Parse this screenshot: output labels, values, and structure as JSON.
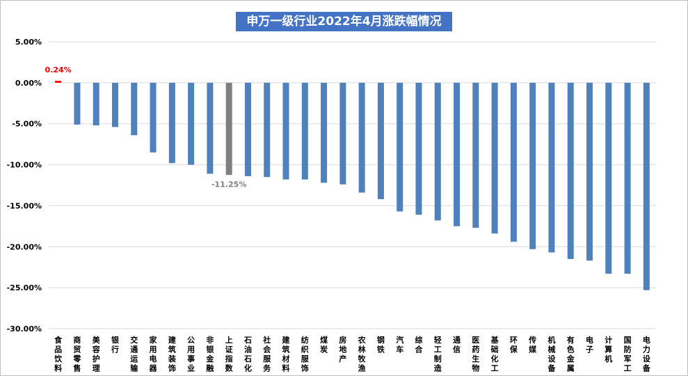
{
  "chart_data": {
    "type": "bar",
    "title": "申万一级行业2022年4月涨跌幅情况",
    "xlabel": "",
    "ylabel": "",
    "ylim": [
      -30,
      5
    ],
    "yticks": [
      "5.00%",
      "0.00%",
      "-5.00%",
      "-10.00%",
      "-15.00%",
      "-20.00%",
      "-25.00%",
      "-30.00%"
    ],
    "grid": true,
    "legend": "none",
    "categories": [
      "食品饮料",
      "商贸零售",
      "美容护理",
      "银行",
      "交通运输",
      "家用电器",
      "建筑装饰",
      "公用事业",
      "非银金融",
      "上证指数",
      "石油石化",
      "社会服务",
      "建筑材料",
      "纺织服饰",
      "煤炭",
      "房地产",
      "农林牧渔",
      "钢铁",
      "汽车",
      "综合",
      "轻工制造",
      "通信",
      "医药生物",
      "基础化工",
      "环保",
      "传媒",
      "机械设备",
      "有色金属",
      "电子",
      "计算机",
      "国防军工",
      "电力设备"
    ],
    "values": [
      0.24,
      -5.1,
      -5.2,
      -5.4,
      -6.4,
      -8.5,
      -9.8,
      -10.0,
      -11.1,
      -11.25,
      -11.4,
      -11.5,
      -11.8,
      -11.8,
      -12.2,
      -12.4,
      -13.4,
      -14.2,
      -15.7,
      -16.1,
      -16.8,
      -17.5,
      -17.7,
      -18.4,
      -19.4,
      -20.3,
      -20.7,
      -21.5,
      -21.7,
      -23.3,
      -23.3,
      -25.3
    ],
    "data_labels": [
      {
        "index": 0,
        "text": "0.24%"
      },
      {
        "index": 9,
        "text": "-11.25%"
      }
    ],
    "colors": {
      "bar": "#4f81bd",
      "index_bar": "#7f7f7f",
      "positive_bar": "#ff0000",
      "title_bg": "#4472c4",
      "title_text": "#ffffff",
      "grid": "#d9d9d9"
    }
  }
}
